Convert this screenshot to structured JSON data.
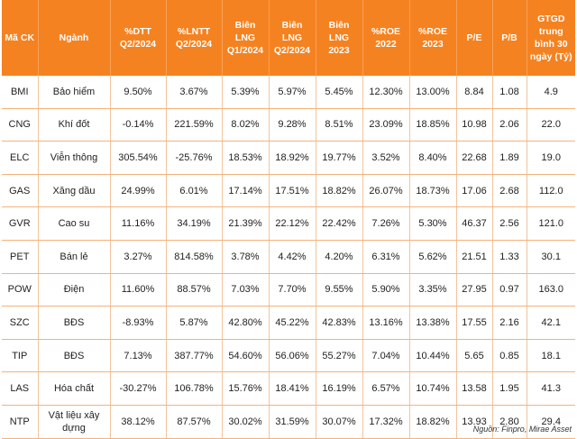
{
  "chart_data": {
    "type": "table",
    "columns": [
      "Mã CK",
      "Ngành",
      "%DTT Q2/2024",
      "%LNTT Q2/2024",
      "Biên LNG Q1/2024",
      "Biên LNG Q2/2024",
      "Biên LNG 2023",
      "%ROE 2022",
      "%ROE 2023",
      "P/E",
      "P/B",
      "GTGD trung bình 30 ngày (Tỷ)"
    ],
    "rows": [
      [
        "BMI",
        "Bảo hiểm",
        "9.50%",
        "3.67%",
        "5.39%",
        "5.97%",
        "5.45%",
        "12.30%",
        "13.00%",
        "8.84",
        "1.08",
        "4.9"
      ],
      [
        "CNG",
        "Khí đốt",
        "-0.14%",
        "221.59%",
        "8.02%",
        "9.28%",
        "8.51%",
        "23.09%",
        "18.85%",
        "10.98",
        "2.06",
        "22.0"
      ],
      [
        "ELC",
        "Viễn thông",
        "305.54%",
        "-25.76%",
        "18.53%",
        "18.92%",
        "19.77%",
        "3.52%",
        "8.40%",
        "22.68",
        "1.89",
        "19.0"
      ],
      [
        "GAS",
        "Xăng dầu",
        "24.99%",
        "6.01%",
        "17.14%",
        "17.51%",
        "18.82%",
        "26.07%",
        "18.73%",
        "17.06",
        "2.68",
        "112.0"
      ],
      [
        "GVR",
        "Cao su",
        "11.16%",
        "34.19%",
        "21.39%",
        "22.12%",
        "22.42%",
        "7.26%",
        "5.30%",
        "46.37",
        "2.56",
        "121.0"
      ],
      [
        "PET",
        "Bán lẻ",
        "3.27%",
        "814.58%",
        "3.78%",
        "4.42%",
        "4.20%",
        "6.31%",
        "5.62%",
        "21.51",
        "1.33",
        "30.1"
      ],
      [
        "POW",
        "Điện",
        "11.60%",
        "88.57%",
        "7.03%",
        "7.70%",
        "9.55%",
        "5.90%",
        "3.35%",
        "27.95",
        "0.97",
        "163.0"
      ],
      [
        "SZC",
        "BĐS",
        "-8.93%",
        "5.87%",
        "42.80%",
        "45.22%",
        "42.83%",
        "13.16%",
        "13.38%",
        "17.55",
        "2.16",
        "42.1"
      ],
      [
        "TIP",
        "BĐS",
        "7.13%",
        "387.77%",
        "54.60%",
        "56.06%",
        "55.27%",
        "7.04%",
        "10.44%",
        "5.65",
        "0.85",
        "18.1"
      ],
      [
        "LAS",
        "Hóa chất",
        "-30.27%",
        "106.78%",
        "15.76%",
        "18.41%",
        "16.19%",
        "6.57%",
        "10.74%",
        "13.58",
        "1.95",
        "41.3"
      ],
      [
        "NTP",
        "Vật liệu xây dựng",
        "38.12%",
        "87.57%",
        "30.02%",
        "31.59%",
        "30.07%",
        "17.32%",
        "18.82%",
        "13.93",
        "2.80",
        "29.4"
      ]
    ],
    "source": "Nguồn: Finpro, Mirae Asset"
  },
  "colors": {
    "header_bg": "#f58220",
    "header_text": "#ffffff",
    "row_divider": "#f5b27a"
  }
}
